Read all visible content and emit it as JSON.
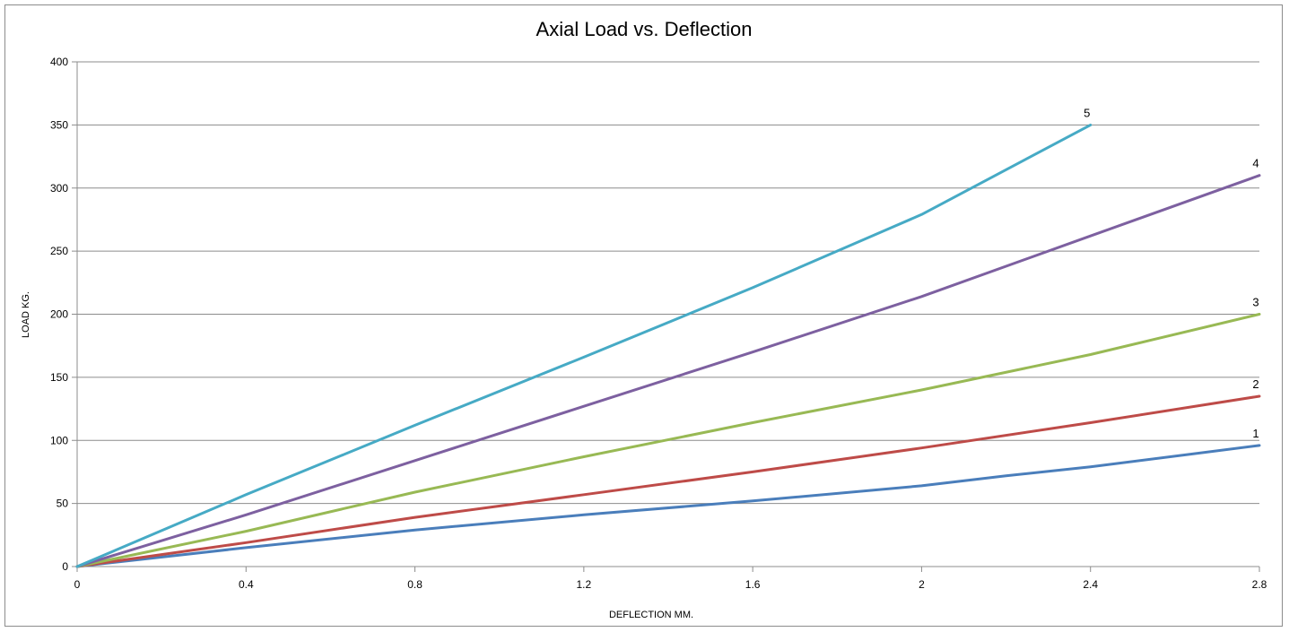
{
  "chart_data": {
    "type": "line",
    "title": "Axial Load vs. Deflection",
    "xlabel": "DEFLECTION MM.",
    "ylabel": "LOAD KG.",
    "xlim": [
      0,
      2.8
    ],
    "ylim": [
      0,
      400
    ],
    "x_ticks": [
      "0",
      "0.4",
      "0.8",
      "1.2",
      "1.6",
      "2",
      "2.4",
      "2.8"
    ],
    "y_ticks": [
      "0",
      "50",
      "100",
      "150",
      "200",
      "250",
      "300",
      "350",
      "400"
    ],
    "grid": "horizontal",
    "legend": "none",
    "series": [
      {
        "label": "1",
        "color": "#4a7ebb",
        "x": [
          0,
          0.4,
          0.8,
          1.2,
          1.6,
          2.0,
          2.2,
          2.4,
          2.8
        ],
        "y": [
          0,
          15,
          29,
          41,
          52,
          64,
          72,
          79,
          96
        ]
      },
      {
        "label": "2",
        "color": "#be4b48",
        "x": [
          0,
          0.4,
          0.8,
          1.2,
          1.6,
          2.0,
          2.4,
          2.8
        ],
        "y": [
          0,
          19,
          39,
          57,
          75,
          94,
          114,
          135
        ]
      },
      {
        "label": "3",
        "color": "#98b954",
        "x": [
          0,
          0.4,
          0.8,
          1.2,
          1.6,
          2.0,
          2.4,
          2.8
        ],
        "y": [
          0,
          28,
          59,
          87,
          114,
          140,
          168,
          200
        ]
      },
      {
        "label": "4",
        "color": "#7d60a0",
        "x": [
          0,
          0.4,
          0.8,
          1.2,
          1.6,
          2.0,
          2.4,
          2.8
        ],
        "y": [
          0,
          41,
          84,
          127,
          170,
          214,
          262,
          310
        ]
      },
      {
        "label": "5",
        "color": "#46aac5",
        "x": [
          0,
          0.4,
          0.8,
          1.2,
          1.6,
          2.0,
          2.4
        ],
        "y": [
          0,
          57,
          112,
          166,
          221,
          279,
          350
        ]
      }
    ]
  }
}
